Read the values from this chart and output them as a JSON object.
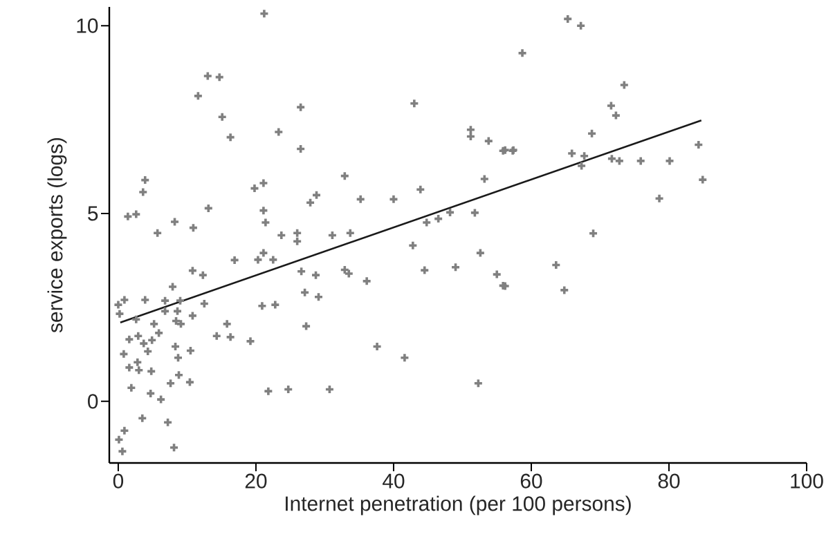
{
  "chart_data": {
    "type": "scatter",
    "xlabel": "Internet penetration (per 100 persons)",
    "ylabel": "service exports (logs)",
    "xlim": [
      -1.3,
      100
    ],
    "ylim": [
      -1.64,
      10.5
    ],
    "xticks": [
      0,
      20,
      40,
      60,
      80,
      100
    ],
    "yticks": [
      0,
      5,
      10
    ],
    "grid": false,
    "series": [
      {
        "marker": "cross",
        "color": "#808080",
        "x": [
          65.3,
          67.2,
          58.7,
          73.5,
          71.6,
          72.3,
          68.8,
          65.9,
          67.7,
          67.3,
          71.7,
          72.8,
          75.9,
          80.1,
          84.3,
          84.9,
          78.6,
          69.0,
          63.6,
          64.8,
          56.2,
          57.4,
          56.2,
          43.0,
          51.2,
          51.2,
          53.8,
          55.9,
          57.3,
          26.5,
          26.5,
          32.9,
          53.2,
          27.9,
          28.8,
          35.2,
          40.0,
          43.9,
          48.2,
          51.8,
          44.8,
          46.5,
          31.1,
          33.7,
          42.8,
          52.6,
          26.6,
          28.7,
          32.9,
          33.5,
          36.1,
          44.5,
          49.0,
          55.0,
          55.9,
          27.1,
          29.1,
          27.3,
          37.6,
          41.6,
          30.7,
          52.3,
          21.2,
          13.0,
          14.7,
          11.6,
          15.1,
          16.3,
          23.3,
          3.9,
          3.6,
          1.4,
          2.6,
          8.2,
          10.9,
          5.7,
          13.1,
          19.8,
          21.1,
          21.1,
          21.4,
          23.7,
          26.0,
          26.0,
          16.9,
          20.3,
          21.1,
          22.5,
          10.8,
          12.3,
          7.9,
          0.0,
          0.9,
          3.9,
          6.8,
          6.8,
          9.0,
          0.2,
          2.6,
          8.6,
          12.5,
          10.8,
          8.4,
          9.1,
          5.2,
          5.9,
          20.9,
          22.8,
          15.8,
          14.3,
          16.3,
          19.2,
          1.6,
          2.9,
          4.9,
          3.7,
          4.3,
          0.8,
          8.3,
          10.5,
          8.7,
          2.8,
          1.6,
          3.0,
          4.8,
          1.9,
          8.8,
          7.6,
          10.4,
          4.7,
          6.2,
          21.8,
          24.7,
          3.5,
          7.2,
          0.9,
          0.1,
          0.6,
          8.1
        ],
        "values": [
          10.18,
          10.0,
          9.27,
          8.42,
          7.87,
          7.61,
          7.13,
          6.6,
          6.53,
          6.27,
          6.46,
          6.4,
          6.4,
          6.4,
          6.83,
          5.9,
          5.4,
          4.47,
          3.63,
          2.96,
          6.69,
          6.69,
          3.07,
          7.93,
          7.23,
          7.05,
          6.93,
          6.67,
          6.67,
          7.83,
          6.72,
          6.0,
          5.92,
          5.29,
          5.49,
          5.38,
          5.38,
          5.64,
          5.03,
          5.02,
          4.76,
          4.86,
          4.42,
          4.48,
          4.15,
          3.95,
          3.46,
          3.36,
          3.5,
          3.4,
          3.2,
          3.49,
          3.57,
          3.38,
          3.08,
          2.9,
          2.78,
          2.0,
          1.46,
          1.16,
          0.32,
          0.48,
          10.32,
          8.66,
          8.63,
          8.13,
          7.57,
          7.03,
          7.17,
          5.89,
          5.57,
          4.92,
          4.98,
          4.78,
          4.62,
          4.48,
          5.14,
          5.67,
          5.81,
          5.08,
          4.76,
          4.42,
          4.48,
          4.26,
          3.76,
          3.77,
          3.95,
          3.77,
          3.48,
          3.36,
          3.05,
          2.57,
          2.7,
          2.7,
          2.68,
          2.4,
          2.68,
          2.33,
          2.18,
          2.4,
          2.6,
          2.28,
          2.14,
          2.06,
          2.06,
          1.82,
          2.54,
          2.57,
          2.06,
          1.74,
          1.71,
          1.6,
          1.65,
          1.74,
          1.63,
          1.54,
          1.33,
          1.26,
          1.46,
          1.35,
          1.16,
          1.04,
          0.9,
          0.83,
          0.8,
          0.36,
          0.7,
          0.48,
          0.51,
          0.21,
          0.05,
          0.27,
          0.32,
          -0.45,
          -0.56,
          -0.78,
          -1.02,
          -1.33,
          -1.23
        ]
      },
      {
        "type": "line",
        "marker": "none",
        "color": "#1a1a1a",
        "x": [
          0.3,
          84.7
        ],
        "values": [
          2.1,
          7.48
        ]
      }
    ]
  }
}
